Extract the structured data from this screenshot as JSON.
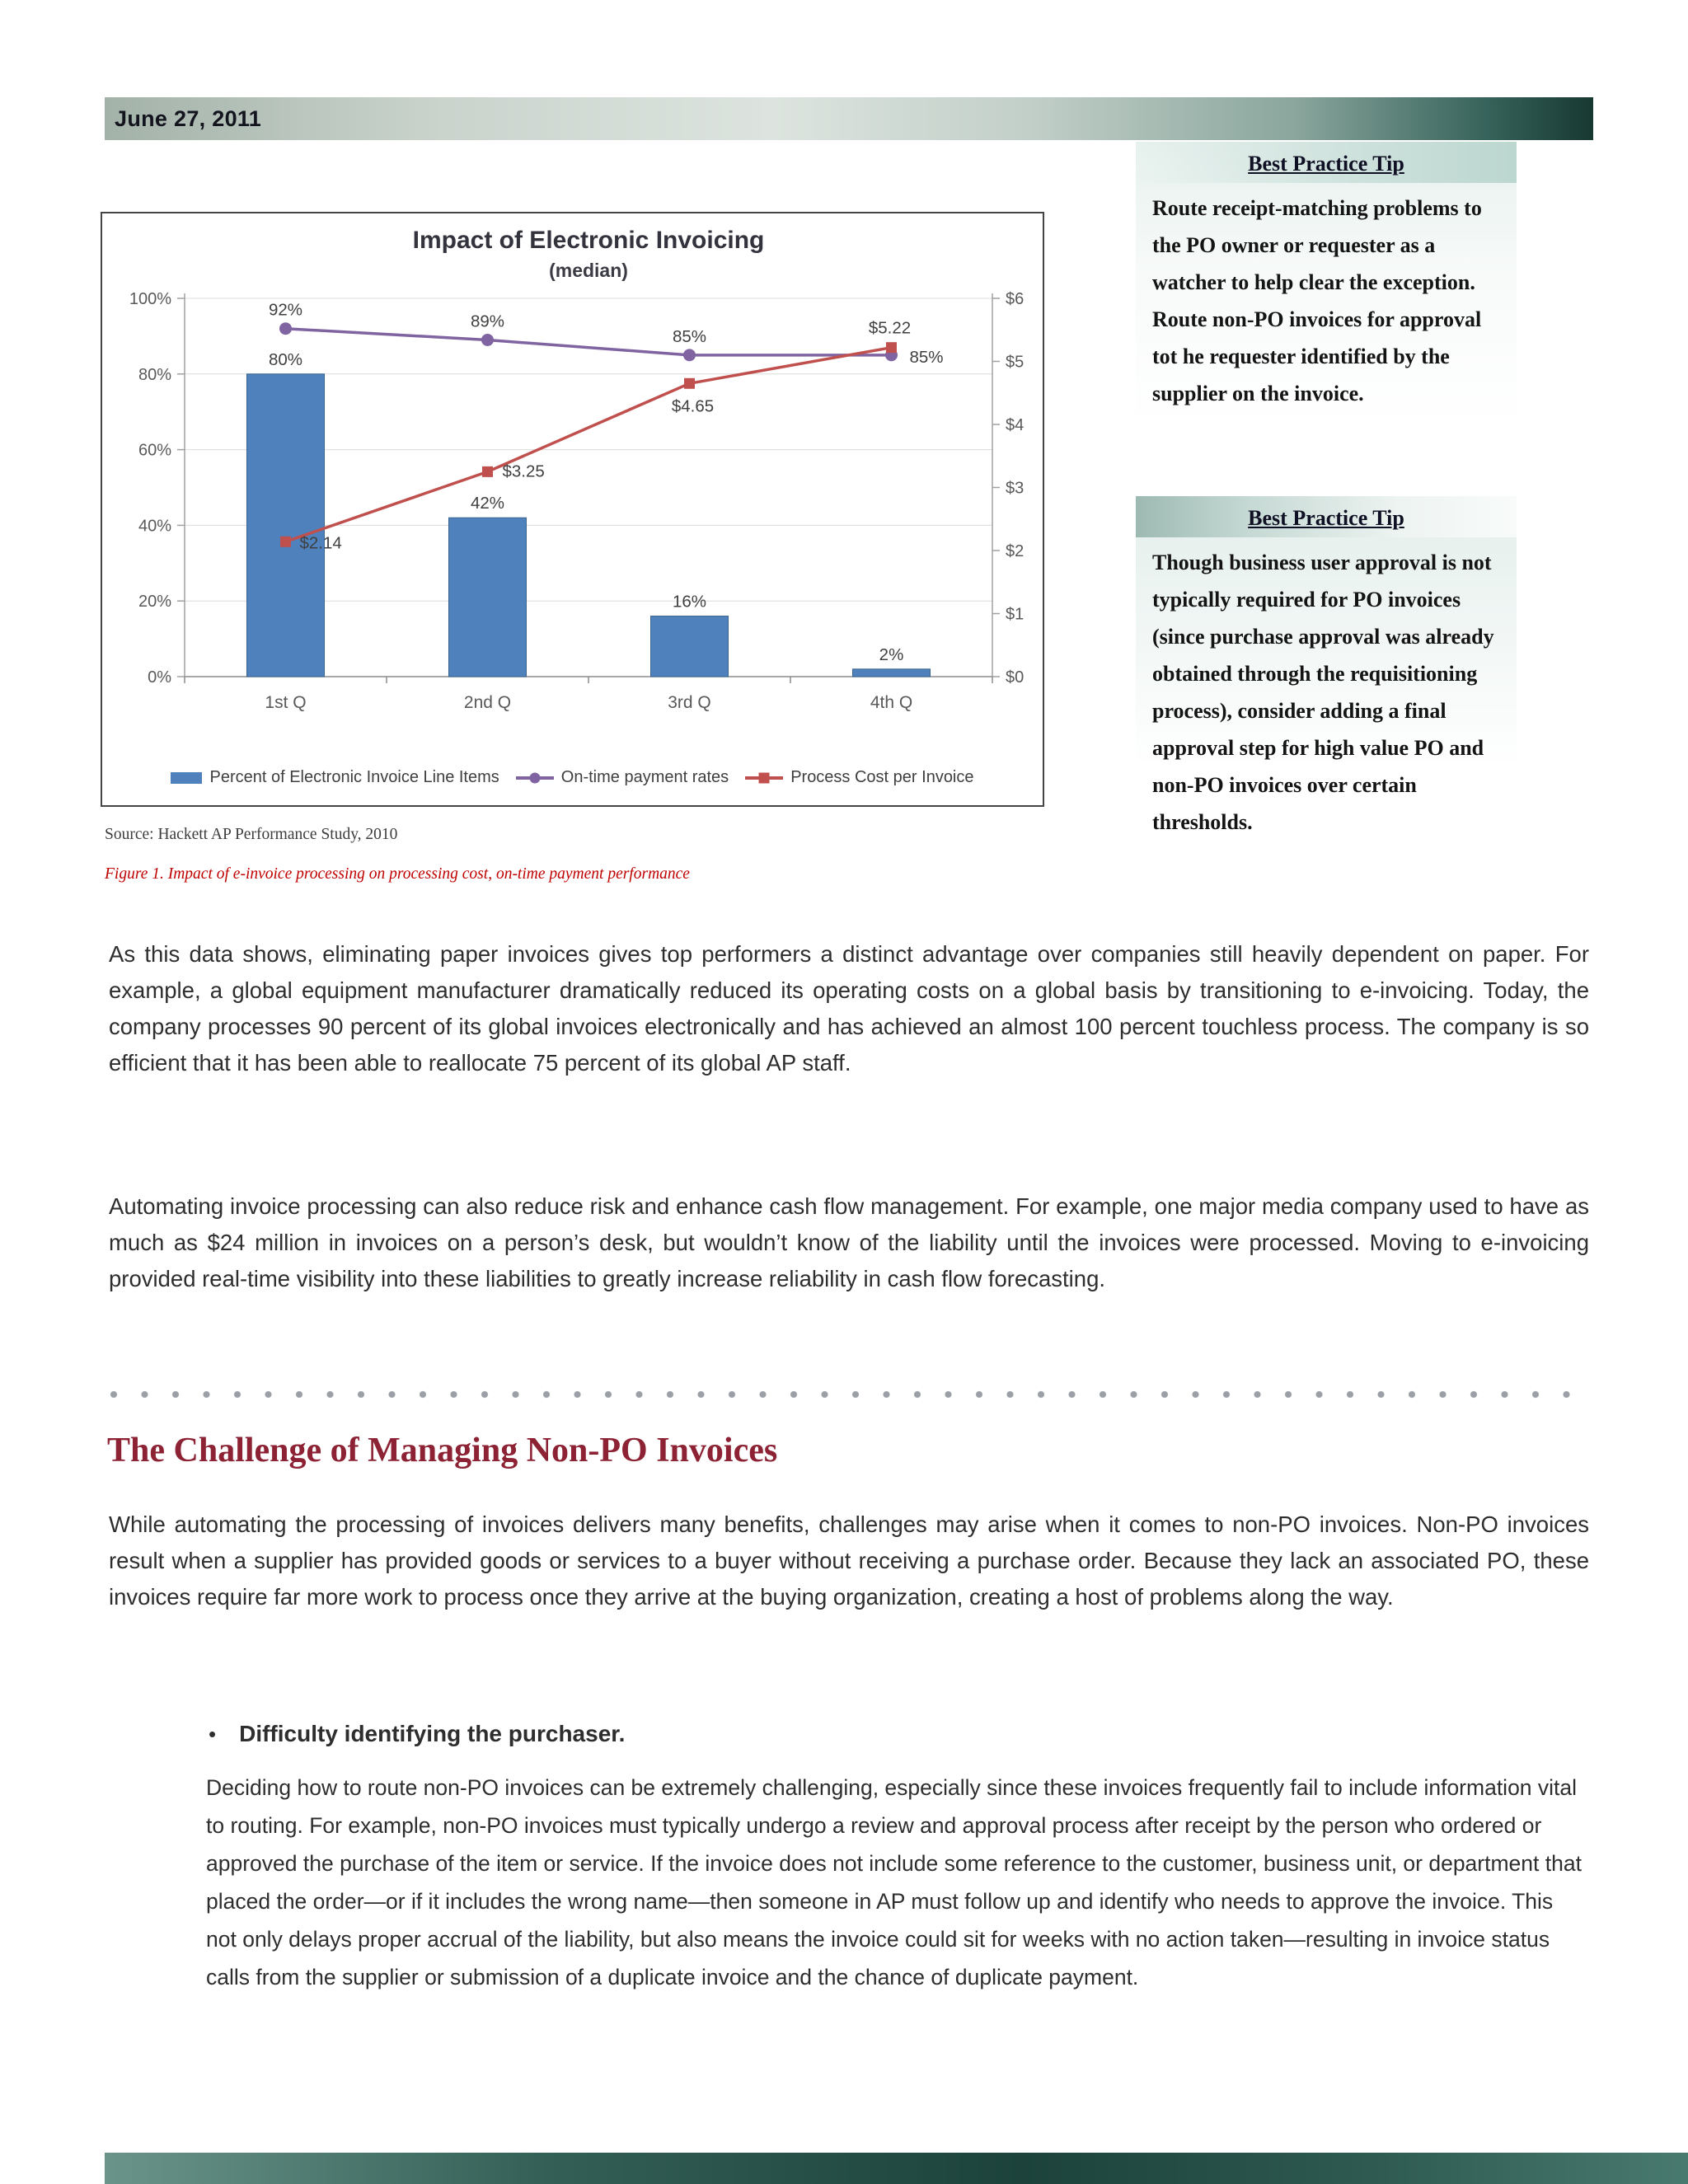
{
  "page": {
    "date": "June 27, 2011"
  },
  "chart_data": {
    "type": "combo",
    "title": "Impact of Electronic Invoicing",
    "subtitle": "(median)",
    "categories": [
      "1st Q",
      "2nd Q",
      "3rd Q",
      "4th Q"
    ],
    "left_axis": {
      "min": 0,
      "max": 100,
      "tick_values": [
        0,
        20,
        40,
        60,
        80,
        100
      ],
      "tick_labels": [
        "0%",
        "20%",
        "40%",
        "60%",
        "80%",
        "100%"
      ]
    },
    "right_axis": {
      "min": 0,
      "max": 6,
      "tick_values": [
        0,
        1,
        2,
        3,
        4,
        5,
        6
      ],
      "tick_labels": [
        "$0",
        "$1",
        "$2",
        "$3",
        "$4",
        "$5",
        "$6"
      ]
    },
    "series": [
      {
        "name": "Percent of Electronic Invoice Line Items",
        "type": "bar",
        "axis": "left",
        "color": "#4F81BD",
        "values": [
          80,
          42,
          16,
          2
        ],
        "labels": [
          "80%",
          "42%",
          "16%",
          "2%"
        ]
      },
      {
        "name": "On-time payment rates",
        "type": "line",
        "marker": "circle",
        "axis": "left",
        "color": "#8064A2",
        "values": [
          92,
          89,
          85,
          85
        ],
        "labels": [
          "92%",
          "89%",
          "85%",
          "85%"
        ]
      },
      {
        "name": "Process Cost per Invoice",
        "type": "line",
        "marker": "square",
        "axis": "right",
        "color": "#C0504D",
        "values": [
          2.14,
          3.25,
          4.65,
          5.22
        ],
        "labels": [
          "$2.14",
          "$3.25",
          "$4.65",
          "$5.22"
        ]
      }
    ],
    "grid": true,
    "legend_position": "bottom",
    "source": "Source: Hackett AP Performance Study, 2010",
    "caption": "Figure 1. Impact of e-invoice processing on processing cost, on-time payment performance"
  },
  "tips": [
    {
      "title": "Best Practice Tip",
      "body": "Route receipt-matching problems to the PO owner or requester as a watcher to help clear the exception. Route non-PO invoices for approval tot he requester identified by the supplier on the invoice."
    },
    {
      "title": "Best Practice Tip",
      "body": "Though business user approval is not typically required for PO invoices (since purchase approval was already obtained through the requisitioning process), consider adding a final approval step for high value PO and non-PO invoices over certain thresholds."
    }
  ],
  "body": {
    "p1": "As this data shows, eliminating paper invoices gives top performers a distinct advantage over companies still heavily dependent on paper. For example, a global equipment manufacturer dramatically reduced its operating costs on a global basis by transitioning to e-invoicing. Today, the company processes 90 percent of its global invoices electronically and has achieved an almost 100 percent touchless process. The company is so efficient that it has been able to reallocate 75 percent of its global AP staff.",
    "p2": "Automating invoice processing can also reduce risk and enhance cash flow management. For example, one major media company used to have as much as $24 million in invoices on a person’s desk, but wouldn’t know of the liability until the invoices were processed. Moving to e-invoicing provided real-time visibility into these liabilities to greatly increase reliability in cash flow forecasting.",
    "section_heading": "The Challenge of Managing Non-PO Invoices",
    "p3": "While automating the processing of invoices delivers many benefits, challenges may arise when it comes to non-PO invoices. Non-PO invoices result when a supplier has provided goods or services to a buyer without receiving a purchase order. Because they lack an associated PO, these invoices require far more work to process once they arrive at the buying organization, creating a host of problems along the way.",
    "bullet_title": "Difficulty identifying the purchaser.",
    "bullet_text": "Deciding how to route non-PO invoices can be extremely challenging, especially since these invoices frequently fail to include information vital to routing. For example, non-PO invoices must typically undergo a review and approval process after receipt by the person who ordered or approved the purchase of the item or service. If the invoice does not include some reference to the customer, business unit, or department that placed the order—or if it includes the wrong name—then someone in AP must follow up and identify who needs to approve the invoice. This not only delays proper accrual of the liability, but also means the invoice could sit for weeks with no action taken—resulting in invoice status calls from the supplier or submission of a duplicate invoice and the chance of duplicate payment."
  },
  "colors": {
    "heading_accent": "#8C2233",
    "caption_red": "#C00000",
    "bar_blue": "#4F81BD",
    "line_purple": "#8064A2",
    "line_red": "#C0504D",
    "band_teal_dark": "#1C423B",
    "band_sage_light": "#C9D3CC"
  }
}
